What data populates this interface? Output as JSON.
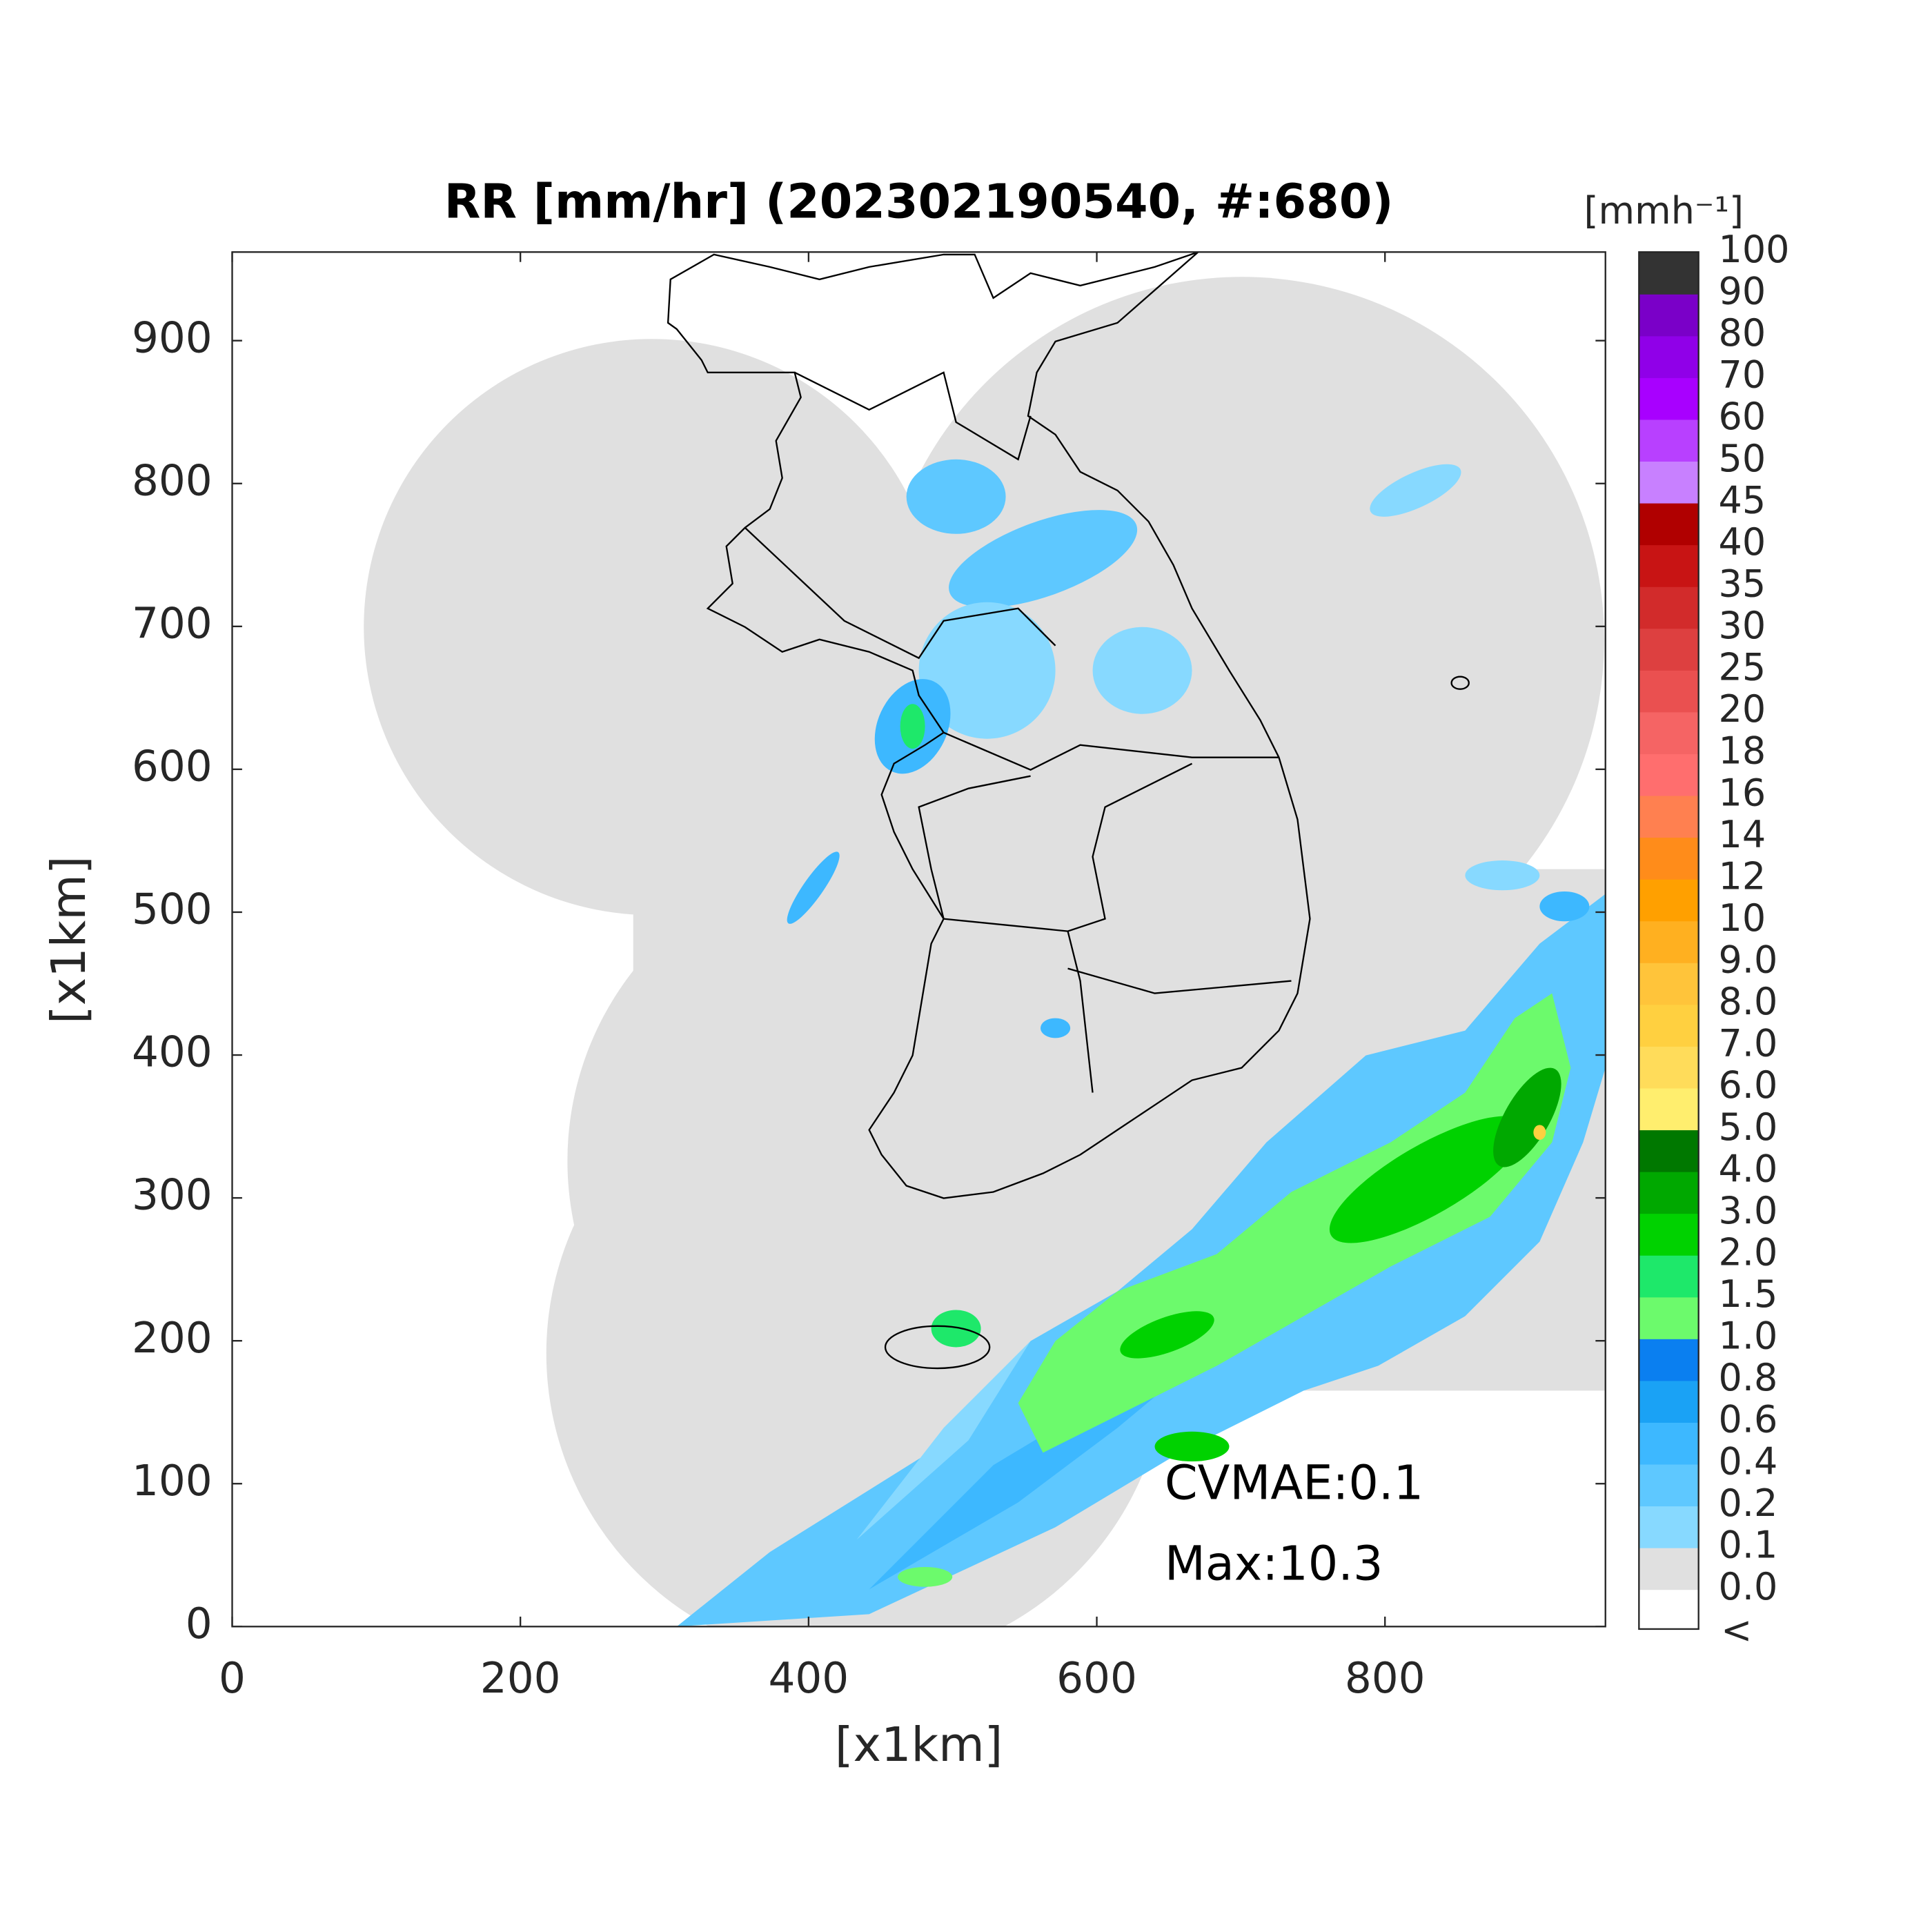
{
  "chart_data": {
    "type": "map",
    "title": "RR [mm/hr] (202302190540, #:680)",
    "xlabel": "[x1km]",
    "ylabel": "[x1km]",
    "xlim": [
      0,
      953
    ],
    "ylim": [
      0,
      962
    ],
    "xticks": [
      0,
      200,
      400,
      600,
      800
    ],
    "yticks": [
      0,
      100,
      200,
      300,
      400,
      500,
      600,
      700,
      800,
      900
    ],
    "annotations": [
      "CVMAE:0.1",
      "Max:10.3"
    ],
    "colorbar": {
      "label": "[mmh⁻¹]",
      "below_label": "<",
      "ticks": [
        {
          "value": 0,
          "label": "0.0"
        },
        {
          "value": 0.1,
          "label": "0.1"
        },
        {
          "value": 0.2,
          "label": "0.2"
        },
        {
          "value": 0.4,
          "label": "0.4"
        },
        {
          "value": 0.6,
          "label": "0.6"
        },
        {
          "value": 0.8,
          "label": "0.8"
        },
        {
          "value": 1,
          "label": "1.0"
        },
        1.5,
        {
          "value": 2,
          "label": "2.0"
        },
        {
          "value": 3,
          "label": "3.0"
        },
        {
          "value": 4,
          "label": "4.0"
        },
        {
          "value": 5,
          "label": "5.0"
        },
        {
          "value": 6,
          "label": "6.0"
        },
        {
          "value": 7,
          "label": "7.0"
        },
        {
          "value": 8,
          "label": "8.0"
        },
        {
          "value": 9,
          "label": "9.0"
        },
        10,
        12,
        14,
        16,
        18,
        20,
        25,
        30,
        35,
        40,
        45,
        50,
        60,
        70,
        80,
        90,
        100
      ],
      "colors": [
        "#ffffff",
        "#e0e0e0",
        "#87d9ff",
        "#5ec8ff",
        "#3db8ff",
        "#1aa2f5",
        "#0a7ff0",
        "#6cfa6c",
        "#1ee86a",
        "#00d200",
        "#00a800",
        "#007800",
        "#ffee6e",
        "#ffdc5a",
        "#ffd040",
        "#ffc43a",
        "#ffb020",
        "#ffa000",
        "#ff8c1a",
        "#ff8050",
        "#ff6e6e",
        "#f56464",
        "#ea5050",
        "#dd4040",
        "#d22b2b",
        "#c81414",
        "#b00000",
        "#c880ff",
        "#b840ff",
        "#a800ff",
        "#9000e8",
        "#7a00c8",
        "#333333"
      ]
    }
  }
}
